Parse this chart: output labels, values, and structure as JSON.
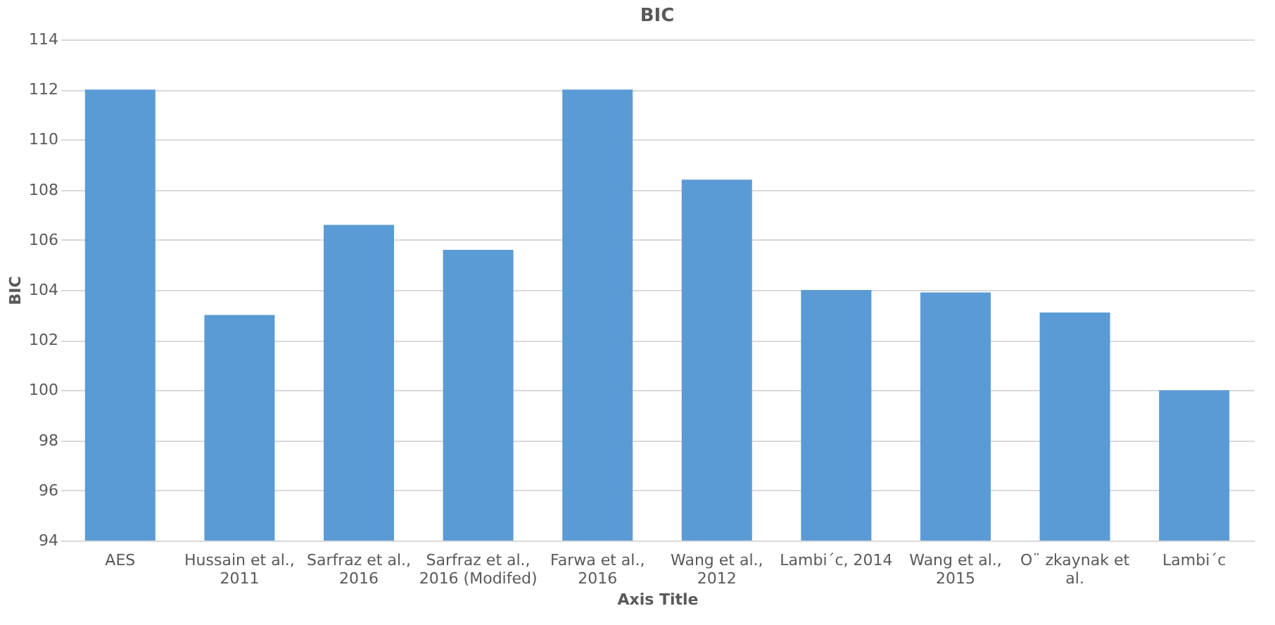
{
  "chart_data": {
    "type": "bar",
    "title": "BIC",
    "xlabel": "Axis Title",
    "ylabel": "BIC",
    "categories": [
      "AES",
      "Hussain et al., 2011",
      "Sarfraz et al., 2016",
      "Sarfraz et al., 2016 (Modifed)",
      "Farwa et al., 2016",
      "Wang et al., 2012",
      "Lambi´c, 2014",
      "Wang et al., 2015",
      "O¨ zkaynak et al.",
      "Lambi´c"
    ],
    "values": [
      112,
      103,
      106.6,
      105.6,
      112,
      108.4,
      104,
      103.9,
      103.1,
      100
    ],
    "color": "#5b9bd5",
    "ylim": [
      94,
      114
    ],
    "yticks": [
      94,
      96,
      98,
      100,
      102,
      104,
      106,
      108,
      110,
      112,
      114
    ],
    "grid": "y"
  }
}
